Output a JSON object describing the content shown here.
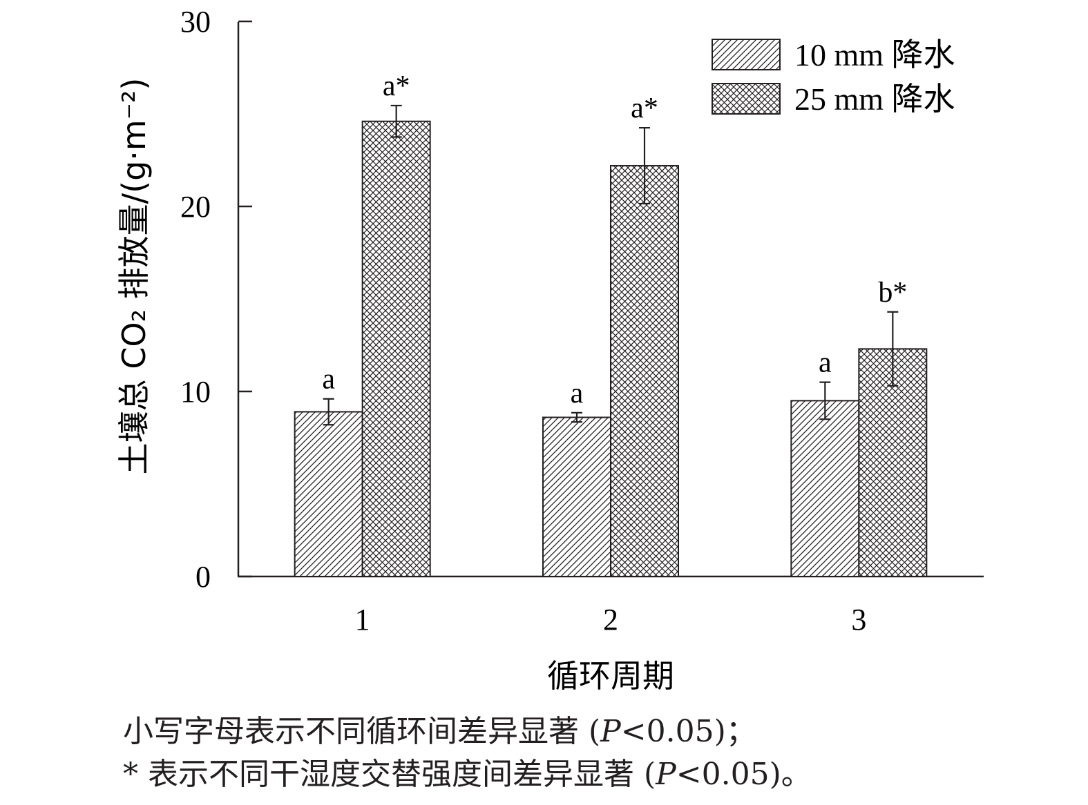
{
  "chart_data": {
    "type": "bar",
    "categories": [
      "1",
      "2",
      "3"
    ],
    "series": [
      {
        "name": "10 mm 降水",
        "pattern": "hatch",
        "values": [
          8.9,
          8.6,
          9.5
        ],
        "errors": [
          0.7,
          0.25,
          1.0
        ],
        "labels": [
          "a",
          "a",
          "a"
        ]
      },
      {
        "name": "25 mm 降水",
        "pattern": "crosshatch",
        "values": [
          24.6,
          22.2,
          12.3
        ],
        "errors": [
          0.85,
          2.05,
          2.0
        ],
        "labels": [
          "a*",
          "a*",
          "b*"
        ]
      }
    ],
    "xlabel": "循环周期",
    "ylabel": "土壤总 CO₂ 排放量/(g·m⁻²)",
    "ylim": [
      0,
      30
    ],
    "yticks": [
      0,
      10,
      20,
      30
    ],
    "legend_position": "top-right",
    "grid": false
  },
  "footnotes": {
    "line1_text": "小写字母表示不同循环间差异显著 (",
    "line1_italic": "P",
    "line1_end": "<0.05)；",
    "line2_text": "* 表示不同干湿度交替强度间差异显著 (",
    "line2_italic": "P",
    "line2_end": "<0.05)。"
  }
}
